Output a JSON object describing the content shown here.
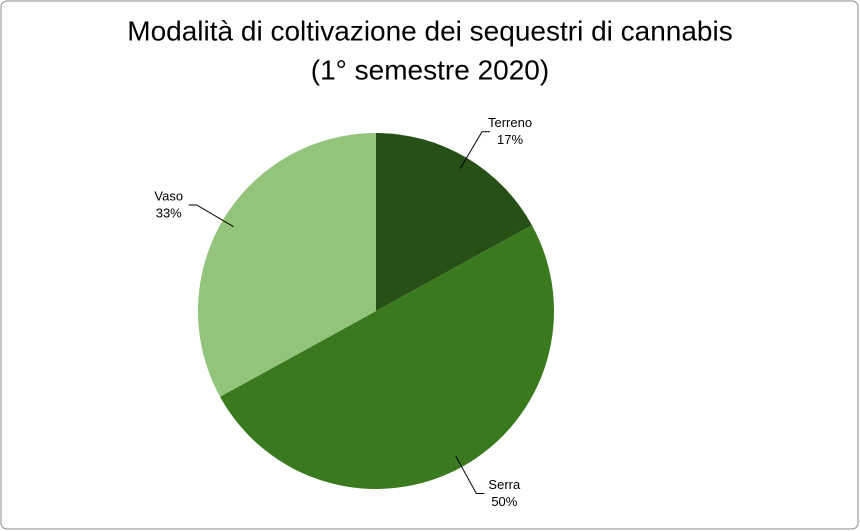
{
  "chart_data": {
    "type": "pie",
    "title": "Modalità di coltivazione dei sequestri di cannabis",
    "subtitle": "(1° semestre  2020)",
    "categories": [
      "Terreno",
      "Serra",
      "Vaso"
    ],
    "values": [
      17,
      50,
      33
    ],
    "value_labels": [
      "17%",
      "50%",
      "33%"
    ],
    "colors": [
      "#275016",
      "#3a7a1f",
      "#93c47c"
    ]
  }
}
